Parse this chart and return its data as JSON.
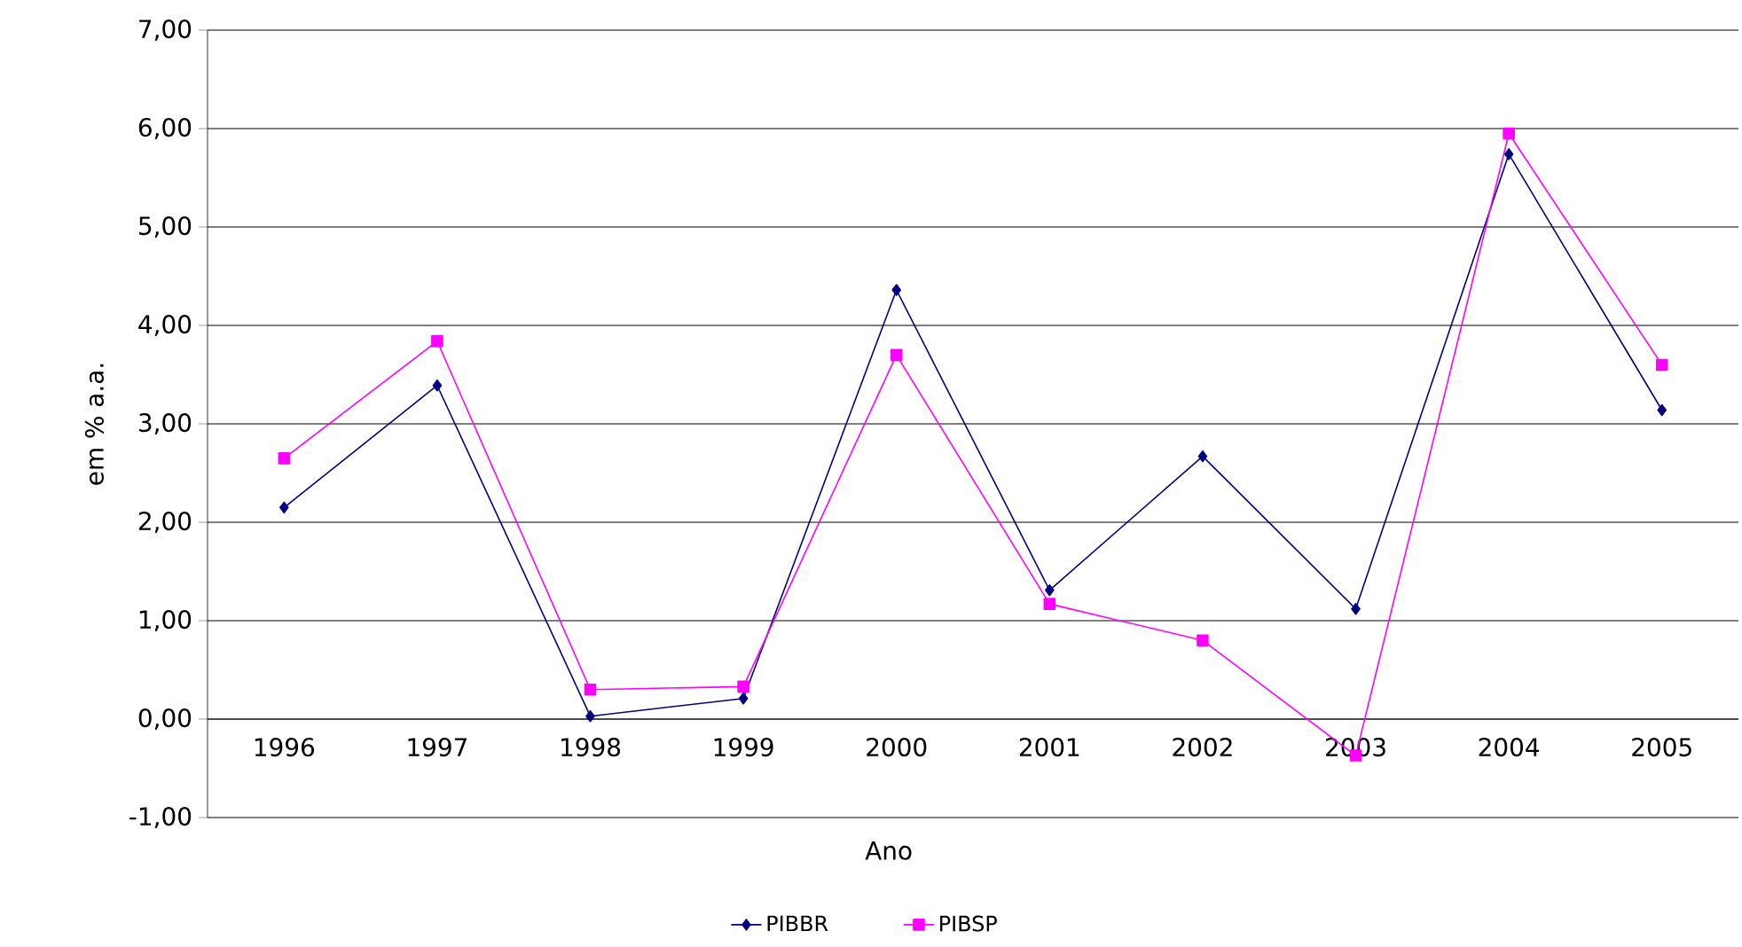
{
  "chart_data": {
    "type": "line",
    "xlabel": "Ano",
    "ylabel": "em % a.a.",
    "categories": [
      "1996",
      "1997",
      "1998",
      "1999",
      "2000",
      "2001",
      "2002",
      "2003",
      "2004",
      "2005"
    ],
    "series": [
      {
        "name": "PIBBR",
        "color": "#000080",
        "marker": "diamond",
        "values": [
          2.15,
          3.39,
          0.03,
          0.21,
          4.36,
          1.31,
          2.67,
          1.12,
          5.74,
          3.14
        ]
      },
      {
        "name": "PIBSP",
        "color": "#ff00ff",
        "marker": "square",
        "values": [
          2.65,
          3.84,
          0.3,
          0.33,
          3.7,
          1.17,
          0.8,
          -0.37,
          5.95,
          3.6
        ]
      }
    ],
    "ylim": [
      -1,
      7
    ],
    "yticks": [
      {
        "value": -1,
        "label": "-1,00"
      },
      {
        "value": 0,
        "label": "0,00"
      },
      {
        "value": 1,
        "label": "1,00"
      },
      {
        "value": 2,
        "label": "2,00"
      },
      {
        "value": 3,
        "label": "3,00"
      },
      {
        "value": 4,
        "label": "4,00"
      },
      {
        "value": 5,
        "label": "5,00"
      },
      {
        "value": 6,
        "label": "6,00"
      },
      {
        "value": 7,
        "label": "7,00"
      }
    ],
    "grid": "y",
    "legend": "bottom",
    "line_style": "solid"
  }
}
